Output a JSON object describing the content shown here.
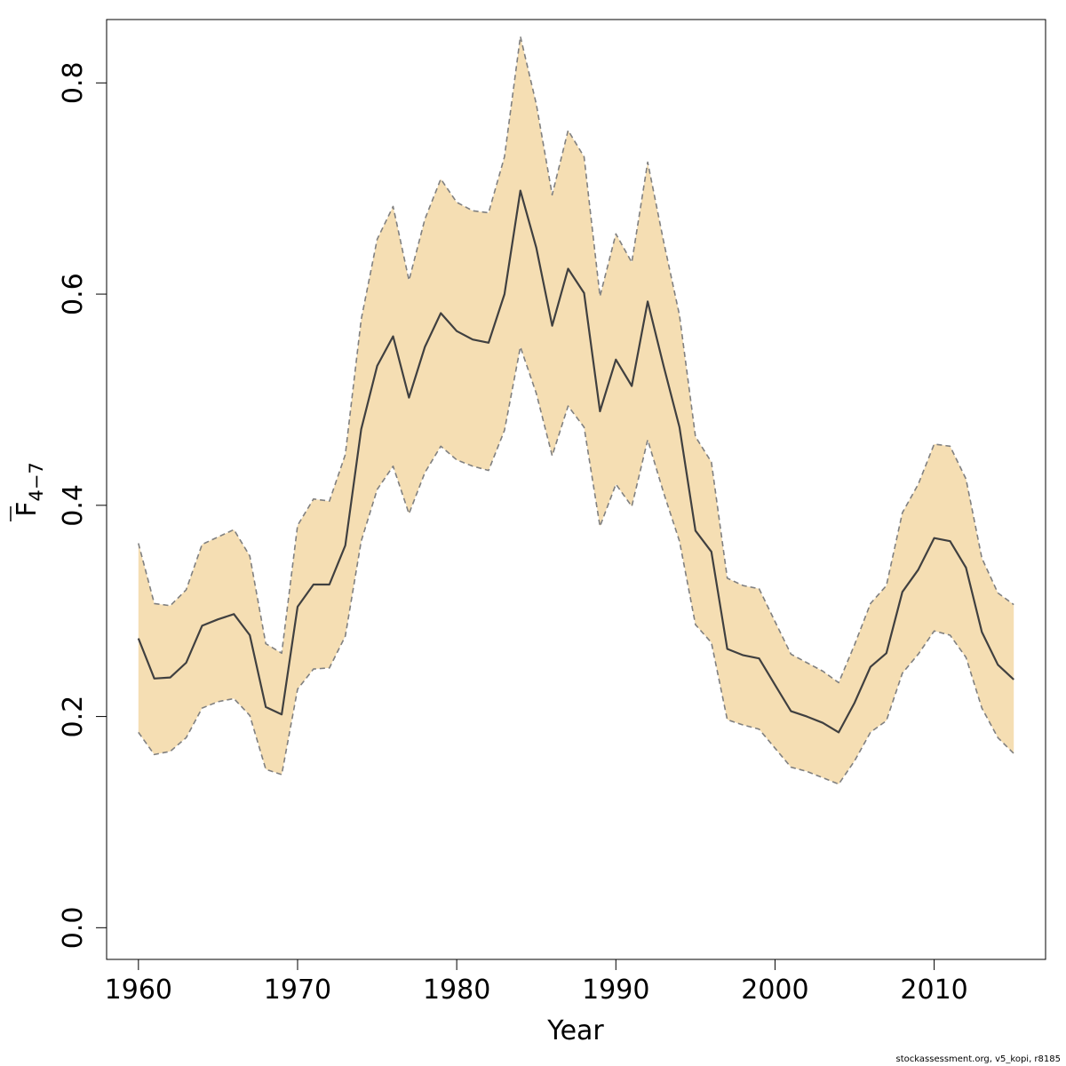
{
  "chart_data": {
    "type": "area",
    "xlabel": "Year",
    "ylabel": "F",
    "ylabel_sub": "4−7",
    "xlim": [
      1958,
      2017
    ],
    "ylim": [
      -0.03,
      0.86
    ],
    "xticks": [
      1960,
      1970,
      1980,
      1990,
      2000,
      2010
    ],
    "yticks": [
      0.0,
      0.2,
      0.4,
      0.6,
      0.8
    ],
    "ytick_labels": [
      "0.0",
      "0.2",
      "0.4",
      "0.6",
      "0.8"
    ],
    "grid": false,
    "colors": {
      "band": "#f5deb3",
      "line": "#404040",
      "bound": "#808080"
    },
    "x": [
      1960,
      1961,
      1962,
      1963,
      1964,
      1965,
      1966,
      1967,
      1968,
      1969,
      1970,
      1971,
      1972,
      1973,
      1974,
      1975,
      1976,
      1977,
      1978,
      1979,
      1980,
      1981,
      1982,
      1983,
      1984,
      1985,
      1986,
      1987,
      1988,
      1989,
      1990,
      1991,
      1992,
      1993,
      1994,
      1995,
      1996,
      1997,
      1998,
      1999,
      2000,
      2001,
      2002,
      2003,
      2004,
      2005,
      2006,
      2007,
      2008,
      2009,
      2010,
      2011,
      2012,
      2013,
      2014,
      2015
    ],
    "series": [
      {
        "role": "estimate",
        "values": [
          0.274,
          0.236,
          0.237,
          0.251,
          0.286,
          0.292,
          0.297,
          0.277,
          0.209,
          0.202,
          0.304,
          0.325,
          0.325,
          0.362,
          0.472,
          0.532,
          0.56,
          0.502,
          0.55,
          0.582,
          0.565,
          0.557,
          0.554,
          0.6,
          0.698,
          0.644,
          0.57,
          0.624,
          0.601,
          0.489,
          0.538,
          0.513,
          0.593,
          0.532,
          0.474,
          0.376,
          0.356,
          0.264,
          0.258,
          0.255,
          0.23,
          0.205,
          0.2,
          0.194,
          0.185,
          0.213,
          0.247,
          0.26,
          0.318,
          0.339,
          0.369,
          0.366,
          0.341,
          0.28,
          0.249,
          0.235
        ]
      },
      {
        "role": "upper",
        "values": [
          0.364,
          0.307,
          0.305,
          0.32,
          0.363,
          0.37,
          0.377,
          0.352,
          0.269,
          0.26,
          0.381,
          0.406,
          0.404,
          0.448,
          0.576,
          0.652,
          0.683,
          0.613,
          0.671,
          0.709,
          0.687,
          0.679,
          0.677,
          0.73,
          0.844,
          0.78,
          0.694,
          0.755,
          0.73,
          0.598,
          0.657,
          0.63,
          0.725,
          0.65,
          0.58,
          0.465,
          0.441,
          0.331,
          0.324,
          0.321,
          0.29,
          0.259,
          0.251,
          0.243,
          0.232,
          0.268,
          0.307,
          0.324,
          0.393,
          0.42,
          0.458,
          0.456,
          0.425,
          0.35,
          0.317,
          0.306
        ]
      },
      {
        "role": "lower",
        "values": [
          0.185,
          0.164,
          0.167,
          0.18,
          0.208,
          0.214,
          0.217,
          0.201,
          0.15,
          0.145,
          0.226,
          0.245,
          0.246,
          0.276,
          0.366,
          0.415,
          0.437,
          0.392,
          0.431,
          0.456,
          0.443,
          0.437,
          0.433,
          0.471,
          0.55,
          0.506,
          0.447,
          0.494,
          0.474,
          0.38,
          0.42,
          0.399,
          0.462,
          0.412,
          0.366,
          0.287,
          0.27,
          0.197,
          0.192,
          0.188,
          0.17,
          0.152,
          0.148,
          0.142,
          0.136,
          0.158,
          0.185,
          0.196,
          0.241,
          0.259,
          0.281,
          0.277,
          0.256,
          0.208,
          0.18,
          0.165
        ]
      }
    ]
  },
  "footer": {
    "text": "stockassessment.org, v5_kopi, r8185"
  }
}
